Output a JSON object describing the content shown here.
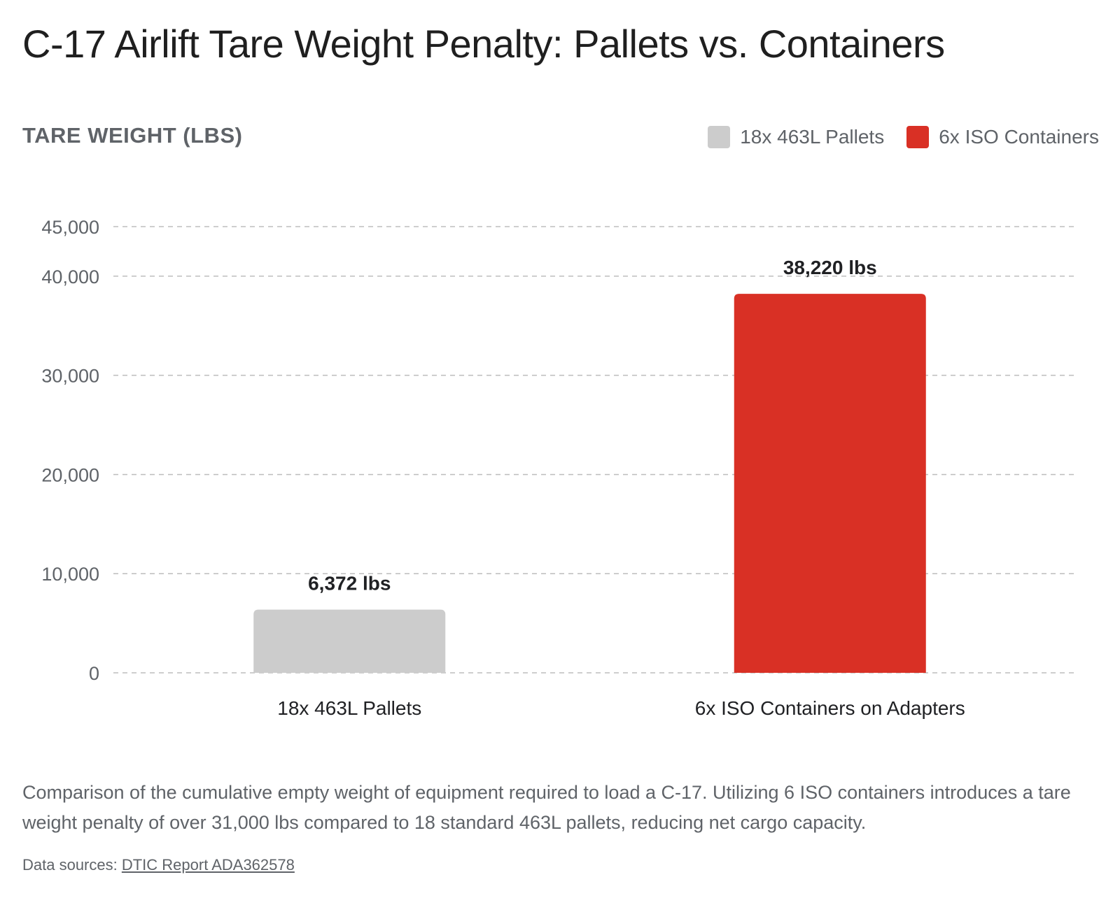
{
  "chart_data": {
    "type": "bar",
    "title": "C-17 Airlift Tare Weight Penalty: Pallets vs. Containers",
    "ylabel": "TARE WEIGHT (LBS)",
    "xlabel": "",
    "ylim": [
      0,
      45000
    ],
    "yticks": [
      0,
      10000,
      20000,
      30000,
      40000,
      45000
    ],
    "ytick_labels": [
      "0",
      "10,000",
      "20,000",
      "30,000",
      "40,000",
      "45,000"
    ],
    "grid": "horizontal dashed",
    "legend_position": "top-right",
    "categories": [
      "18x 463L Pallets",
      "6x ISO Containers on Adapters"
    ],
    "values": [
      6372,
      38220
    ],
    "data_labels": [
      "6,372 lbs",
      "38,220 lbs"
    ],
    "colors": [
      "#cccccc",
      "#d93025"
    ],
    "legend": [
      {
        "label": "18x 463L Pallets",
        "color": "#cccccc"
      },
      {
        "label": "6x ISO Containers",
        "color": "#d93025"
      }
    ]
  },
  "caption": "Comparison of the cumulative empty weight of equipment required to load a C-17. Utilizing 6 ISO containers introduces a tare weight penalty of over 31,000 lbs compared to 18 standard 463L pallets, reducing net cargo capacity.",
  "sources": {
    "prefix": "Data sources: ",
    "link_text": "DTIC Report ADA362578"
  },
  "colors": {
    "grid": "#bdbdbd",
    "tick_text": "#5f6368",
    "data_label": "#202124"
  }
}
